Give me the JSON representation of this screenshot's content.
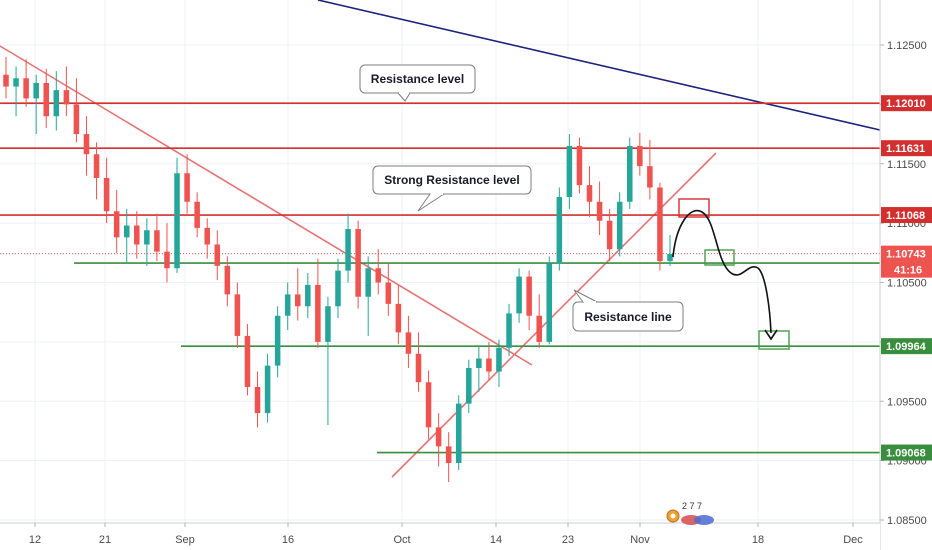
{
  "chart_data": {
    "type": "candlestick",
    "price_scale": {
      "ticks": [
        1.085,
        1.09,
        1.095,
        1.1,
        1.105,
        1.11,
        1.115,
        1.12,
        1.125
      ],
      "tick_labels": [
        "1.08500",
        "1.09000",
        "1.09500",
        "1.10000",
        "1.10500",
        "1.11000",
        "1.11500",
        "1.12000",
        "1.12500"
      ],
      "range": [
        1.0835,
        1.1285
      ]
    },
    "time_scale": {
      "labels": [
        "12",
        "21",
        "Sep",
        "16",
        "Oct",
        "14",
        "23",
        "Nov",
        "18",
        "Dec"
      ]
    },
    "horizontal_levels": [
      {
        "name": "resistance-1-12010",
        "value": 1.1201,
        "label": "1.12010",
        "color": "#d32f2f"
      },
      {
        "name": "resistance-1-11631",
        "value": 1.11631,
        "label": "1.11631",
        "color": "#d32f2f"
      },
      {
        "name": "resistance-1-11068",
        "value": 1.11068,
        "label": "1.11068",
        "color": "#d32f2f"
      },
      {
        "name": "support-1-10664",
        "value": 1.10664,
        "label": "1.10664",
        "color": "#388e3c"
      },
      {
        "name": "support-1-09964",
        "value": 1.09964,
        "label": "1.09964",
        "color": "#388e3c"
      },
      {
        "name": "support-1-09068",
        "value": 1.09068,
        "label": "1.09068",
        "color": "#388e3c"
      }
    ],
    "current_price": {
      "value": 1.10743,
      "label": "1.10743",
      "countdown": "41:16",
      "color": "#ef5350"
    },
    "annotations": [
      "Resistance level",
      "Strong Resistance level",
      "Resistance line"
    ],
    "candles": [
      {
        "o": 1.1225,
        "h": 1.124,
        "l": 1.1205,
        "c": 1.1215
      },
      {
        "o": 1.1215,
        "h": 1.1232,
        "l": 1.119,
        "c": 1.1222
      },
      {
        "o": 1.1222,
        "h": 1.1238,
        "l": 1.1198,
        "c": 1.1205
      },
      {
        "o": 1.1205,
        "h": 1.1225,
        "l": 1.1175,
        "c": 1.1218
      },
      {
        "o": 1.1218,
        "h": 1.123,
        "l": 1.118,
        "c": 1.119
      },
      {
        "o": 1.119,
        "h": 1.1228,
        "l": 1.1178,
        "c": 1.1212
      },
      {
        "o": 1.1212,
        "h": 1.1232,
        "l": 1.119,
        "c": 1.12
      },
      {
        "o": 1.12,
        "h": 1.1222,
        "l": 1.1168,
        "c": 1.1175
      },
      {
        "o": 1.1175,
        "h": 1.119,
        "l": 1.114,
        "c": 1.1158
      },
      {
        "o": 1.1158,
        "h": 1.1168,
        "l": 1.112,
        "c": 1.1138
      },
      {
        "o": 1.1138,
        "h": 1.1155,
        "l": 1.11,
        "c": 1.111
      },
      {
        "o": 1.111,
        "h": 1.1128,
        "l": 1.1075,
        "c": 1.1088
      },
      {
        "o": 1.1088,
        "h": 1.1112,
        "l": 1.1066,
        "c": 1.1098
      },
      {
        "o": 1.1098,
        "h": 1.111,
        "l": 1.107,
        "c": 1.1082
      },
      {
        "o": 1.1082,
        "h": 1.1104,
        "l": 1.1064,
        "c": 1.1094
      },
      {
        "o": 1.1094,
        "h": 1.1108,
        "l": 1.1068,
        "c": 1.1076
      },
      {
        "o": 1.1076,
        "h": 1.11,
        "l": 1.105,
        "c": 1.1062
      },
      {
        "o": 1.1062,
        "h": 1.1155,
        "l": 1.1058,
        "c": 1.1142
      },
      {
        "o": 1.1142,
        "h": 1.1158,
        "l": 1.1108,
        "c": 1.1118
      },
      {
        "o": 1.1118,
        "h": 1.1126,
        "l": 1.1088,
        "c": 1.1096
      },
      {
        "o": 1.1096,
        "h": 1.1104,
        "l": 1.107,
        "c": 1.1082
      },
      {
        "o": 1.1082,
        "h": 1.1094,
        "l": 1.1052,
        "c": 1.1064
      },
      {
        "o": 1.1064,
        "h": 1.1072,
        "l": 1.103,
        "c": 1.104
      },
      {
        "o": 1.104,
        "h": 1.105,
        "l": 1.0995,
        "c": 1.1005
      },
      {
        "o": 1.1005,
        "h": 1.1015,
        "l": 1.0955,
        "c": 1.0962
      },
      {
        "o": 1.0962,
        "h": 1.0975,
        "l": 1.0928,
        "c": 1.094
      },
      {
        "o": 1.094,
        "h": 1.099,
        "l": 1.0932,
        "c": 1.098
      },
      {
        "o": 1.098,
        "h": 1.103,
        "l": 1.097,
        "c": 1.1022
      },
      {
        "o": 1.1022,
        "h": 1.105,
        "l": 1.101,
        "c": 1.104
      },
      {
        "o": 1.104,
        "h": 1.1062,
        "l": 1.1018,
        "c": 1.103
      },
      {
        "o": 1.103,
        "h": 1.1058,
        "l": 1.102,
        "c": 1.1048
      },
      {
        "o": 1.1048,
        "h": 1.107,
        "l": 1.0995,
        "c": 1.1
      },
      {
        "o": 1.1,
        "h": 1.1038,
        "l": 1.093,
        "c": 1.103
      },
      {
        "o": 1.103,
        "h": 1.107,
        "l": 1.102,
        "c": 1.106
      },
      {
        "o": 1.106,
        "h": 1.1108,
        "l": 1.105,
        "c": 1.1095
      },
      {
        "o": 1.1095,
        "h": 1.1102,
        "l": 1.1028,
        "c": 1.1038
      },
      {
        "o": 1.1038,
        "h": 1.1072,
        "l": 1.1005,
        "c": 1.1062
      },
      {
        "o": 1.1062,
        "h": 1.1078,
        "l": 1.104,
        "c": 1.105
      },
      {
        "o": 1.105,
        "h": 1.1066,
        "l": 1.1022,
        "c": 1.1032
      },
      {
        "o": 1.1032,
        "h": 1.1048,
        "l": 1.0998,
        "c": 1.1008
      },
      {
        "o": 1.1008,
        "h": 1.1022,
        "l": 1.0978,
        "c": 1.099
      },
      {
        "o": 1.099,
        "h": 1.1008,
        "l": 1.0958,
        "c": 1.0966
      },
      {
        "o": 1.0966,
        "h": 1.0976,
        "l": 1.0918,
        "c": 1.0928
      },
      {
        "o": 1.0928,
        "h": 1.094,
        "l": 1.0895,
        "c": 1.0912
      },
      {
        "o": 1.0912,
        "h": 1.0924,
        "l": 1.0882,
        "c": 1.0898
      },
      {
        "o": 1.0898,
        "h": 1.0955,
        "l": 1.0892,
        "c": 1.0948
      },
      {
        "o": 1.0948,
        "h": 1.0985,
        "l": 1.094,
        "c": 1.0978
      },
      {
        "o": 1.0978,
        "h": 1.0996,
        "l": 1.0958,
        "c": 1.0986
      },
      {
        "o": 1.0986,
        "h": 1.1,
        "l": 1.0968,
        "c": 1.0975
      },
      {
        "o": 1.0975,
        "h": 1.1002,
        "l": 1.0962,
        "c": 1.0995
      },
      {
        "o": 1.0995,
        "h": 1.1032,
        "l": 1.0988,
        "c": 1.1024
      },
      {
        "o": 1.1024,
        "h": 1.1062,
        "l": 1.1016,
        "c": 1.1055
      },
      {
        "o": 1.1055,
        "h": 1.106,
        "l": 1.101,
        "c": 1.1022
      },
      {
        "o": 1.1022,
        "h": 1.104,
        "l": 1.0995,
        "c": 1.1
      },
      {
        "o": 1.1,
        "h": 1.1072,
        "l": 1.0998,
        "c": 1.1066
      },
      {
        "o": 1.1066,
        "h": 1.113,
        "l": 1.106,
        "c": 1.1122
      },
      {
        "o": 1.1122,
        "h": 1.1175,
        "l": 1.1112,
        "c": 1.1165
      },
      {
        "o": 1.1165,
        "h": 1.1172,
        "l": 1.1125,
        "c": 1.1132
      },
      {
        "o": 1.1132,
        "h": 1.1148,
        "l": 1.1105,
        "c": 1.1118
      },
      {
        "o": 1.1118,
        "h": 1.1135,
        "l": 1.109,
        "c": 1.1102
      },
      {
        "o": 1.1102,
        "h": 1.1112,
        "l": 1.1068,
        "c": 1.1078
      },
      {
        "o": 1.1078,
        "h": 1.1126,
        "l": 1.1072,
        "c": 1.1118
      },
      {
        "o": 1.1118,
        "h": 1.1172,
        "l": 1.1112,
        "c": 1.1165
      },
      {
        "o": 1.1165,
        "h": 1.1176,
        "l": 1.114,
        "c": 1.1148
      },
      {
        "o": 1.1148,
        "h": 1.117,
        "l": 1.112,
        "c": 1.113
      },
      {
        "o": 1.113,
        "h": 1.1134,
        "l": 1.106,
        "c": 1.1068
      },
      {
        "o": 1.1068,
        "h": 1.109,
        "l": 1.1064,
        "c": 1.1074
      }
    ]
  },
  "logo": {
    "text": "2 7 7"
  }
}
